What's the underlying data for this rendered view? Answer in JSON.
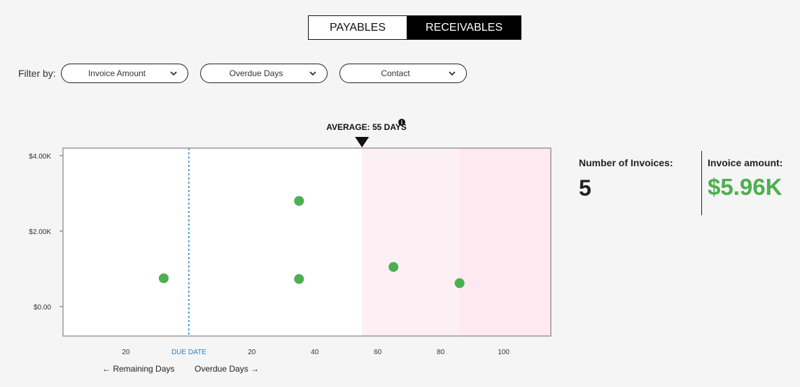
{
  "tabs": {
    "payables": "PAYABLES",
    "receivables": "RECEIVABLES",
    "active": "receivables"
  },
  "filters": {
    "label": "Filter by:",
    "items": [
      "Invoice Amount",
      "Overdue Days",
      "Contact"
    ]
  },
  "chart_data": {
    "type": "scatter",
    "title": "",
    "average_label": "AVERAGE: 55 DAYS",
    "average_value": 55,
    "ylabel": "",
    "y_ticks": [
      {
        "value": 0,
        "label": "$0.00"
      },
      {
        "value": 2000,
        "label": "$2.00K"
      },
      {
        "value": 4000,
        "label": "$4.00K"
      }
    ],
    "ylim": [
      -780,
      4200
    ],
    "xlim": [
      -40,
      115
    ],
    "x_ticks": [
      {
        "value": -20,
        "label": "20"
      },
      {
        "value": 0,
        "label": "DUE DATE"
      },
      {
        "value": 20,
        "label": "20"
      },
      {
        "value": 40,
        "label": "40"
      },
      {
        "value": 60,
        "label": "60"
      },
      {
        "value": 80,
        "label": "80"
      },
      {
        "value": 100,
        "label": "100"
      }
    ],
    "due_date_x": 0,
    "shaded_regions": [
      {
        "from": 55,
        "to": 86,
        "color": "#fdf0f4"
      },
      {
        "from": 86,
        "to": 115,
        "color": "#fde9ef"
      }
    ],
    "points": [
      {
        "x": -8,
        "y": 750
      },
      {
        "x": 35,
        "y": 2800
      },
      {
        "x": 35,
        "y": 730
      },
      {
        "x": 65,
        "y": 1050
      },
      {
        "x": 86,
        "y": 620
      }
    ],
    "point_color": "#4caf50",
    "x_direction_labels": {
      "left": "Remaining Days",
      "right": "Overdue Days"
    }
  },
  "stats": {
    "count_label": "Number of Invoices:",
    "count_value": "5",
    "amount_label": "Invoice amount:",
    "amount_value": "$5.96K"
  }
}
